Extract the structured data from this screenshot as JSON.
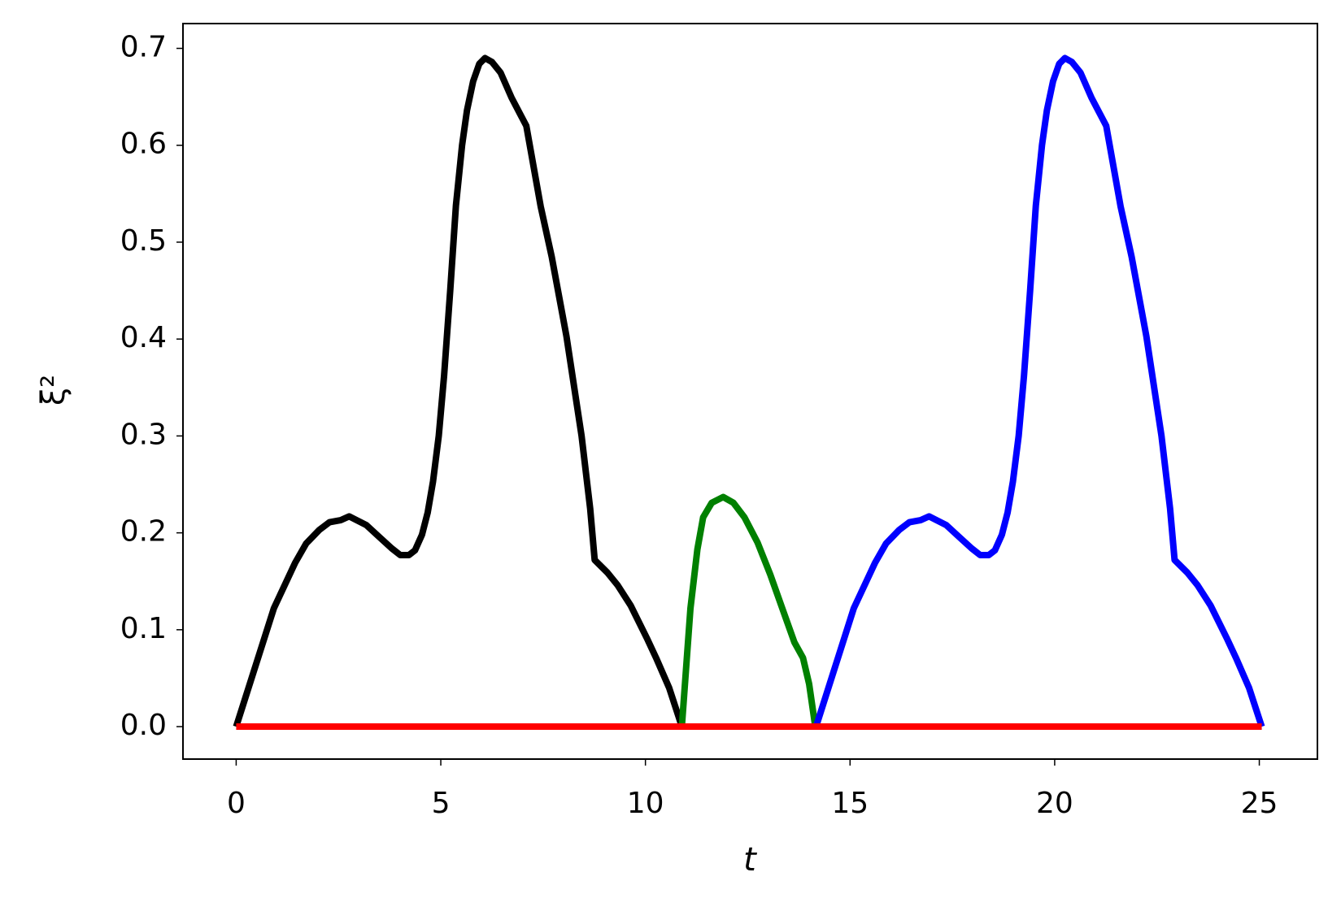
{
  "chart_data": {
    "type": "line",
    "xlabel": "t",
    "ylabel": "ξ²",
    "xlim": [
      -1.3,
      26.42
    ],
    "ylim": [
      -0.0335,
      0.7256
    ],
    "xticks": [
      0,
      5,
      10,
      15,
      20,
      25
    ],
    "yticks": [
      {
        "value": 0,
        "label": "0.0"
      },
      0.1,
      0.2,
      0.3,
      0.4,
      0.5,
      0.6,
      0.7
    ],
    "grid": false,
    "series": [
      {
        "color": "#000000",
        "x": [
          0,
          0.92,
          1.44,
          1.71,
          2.03,
          2.28,
          2.55,
          2.76,
          3.18,
          3.49,
          3.8,
          4.01,
          4.22,
          4.37,
          4.54,
          4.68,
          4.81,
          4.95,
          5.08,
          5.23,
          5.37,
          5.52,
          5.64,
          5.79,
          5.94,
          6.08,
          6.25,
          6.46,
          6.73,
          7.09,
          7.44,
          7.71,
          8.07,
          8.44,
          8.65,
          8.76,
          9.07,
          9.32,
          9.64,
          10.05,
          10.26,
          10.58,
          10.89
        ],
        "values": [
          0,
          0.122,
          0.169,
          0.189,
          0.203,
          0.211,
          0.213,
          0.217,
          0.208,
          0.196,
          0.184,
          0.177,
          0.177,
          0.182,
          0.198,
          0.221,
          0.253,
          0.3,
          0.362,
          0.45,
          0.538,
          0.6,
          0.636,
          0.666,
          0.684,
          0.69,
          0.686,
          0.675,
          0.649,
          0.62,
          0.537,
          0.485,
          0.403,
          0.3,
          0.225,
          0.172,
          0.159,
          0.146,
          0.125,
          0.09,
          0.071,
          0.04,
          0
        ]
      },
      {
        "color": "#008000",
        "x": [
          10.89,
          11.1,
          11.27,
          11.41,
          11.62,
          11.9,
          12.15,
          12.42,
          12.74,
          13.05,
          13.37,
          13.64,
          13.85,
          14.0,
          14.15
        ],
        "values": [
          0,
          0.122,
          0.183,
          0.216,
          0.231,
          0.237,
          0.231,
          0.216,
          0.19,
          0.157,
          0.119,
          0.087,
          0.071,
          0.044,
          0
        ]
      },
      {
        "color": "#0000ff",
        "x": [
          14.17,
          15.09,
          15.61,
          15.88,
          16.2,
          16.45,
          16.72,
          16.93,
          17.35,
          17.66,
          17.97,
          18.18,
          18.39,
          18.54,
          18.71,
          18.85,
          18.98,
          19.12,
          19.25,
          19.4,
          19.54,
          19.69,
          19.81,
          19.96,
          20.11,
          20.25,
          20.42,
          20.63,
          20.9,
          21.26,
          21.61,
          21.88,
          22.24,
          22.61,
          22.82,
          22.93,
          23.24,
          23.49,
          23.81,
          24.22,
          24.43,
          24.75,
          25.06
        ],
        "values": [
          0,
          0.122,
          0.169,
          0.189,
          0.203,
          0.211,
          0.213,
          0.217,
          0.208,
          0.196,
          0.184,
          0.177,
          0.177,
          0.182,
          0.198,
          0.221,
          0.253,
          0.3,
          0.362,
          0.45,
          0.538,
          0.6,
          0.636,
          0.666,
          0.684,
          0.69,
          0.686,
          0.675,
          0.649,
          0.62,
          0.537,
          0.485,
          0.403,
          0.3,
          0.225,
          0.172,
          0.159,
          0.146,
          0.125,
          0.09,
          0.071,
          0.04,
          0
        ]
      },
      {
        "color": "#ff0000",
        "x": [
          0,
          25.06
        ],
        "values": [
          0,
          0
        ]
      }
    ]
  }
}
